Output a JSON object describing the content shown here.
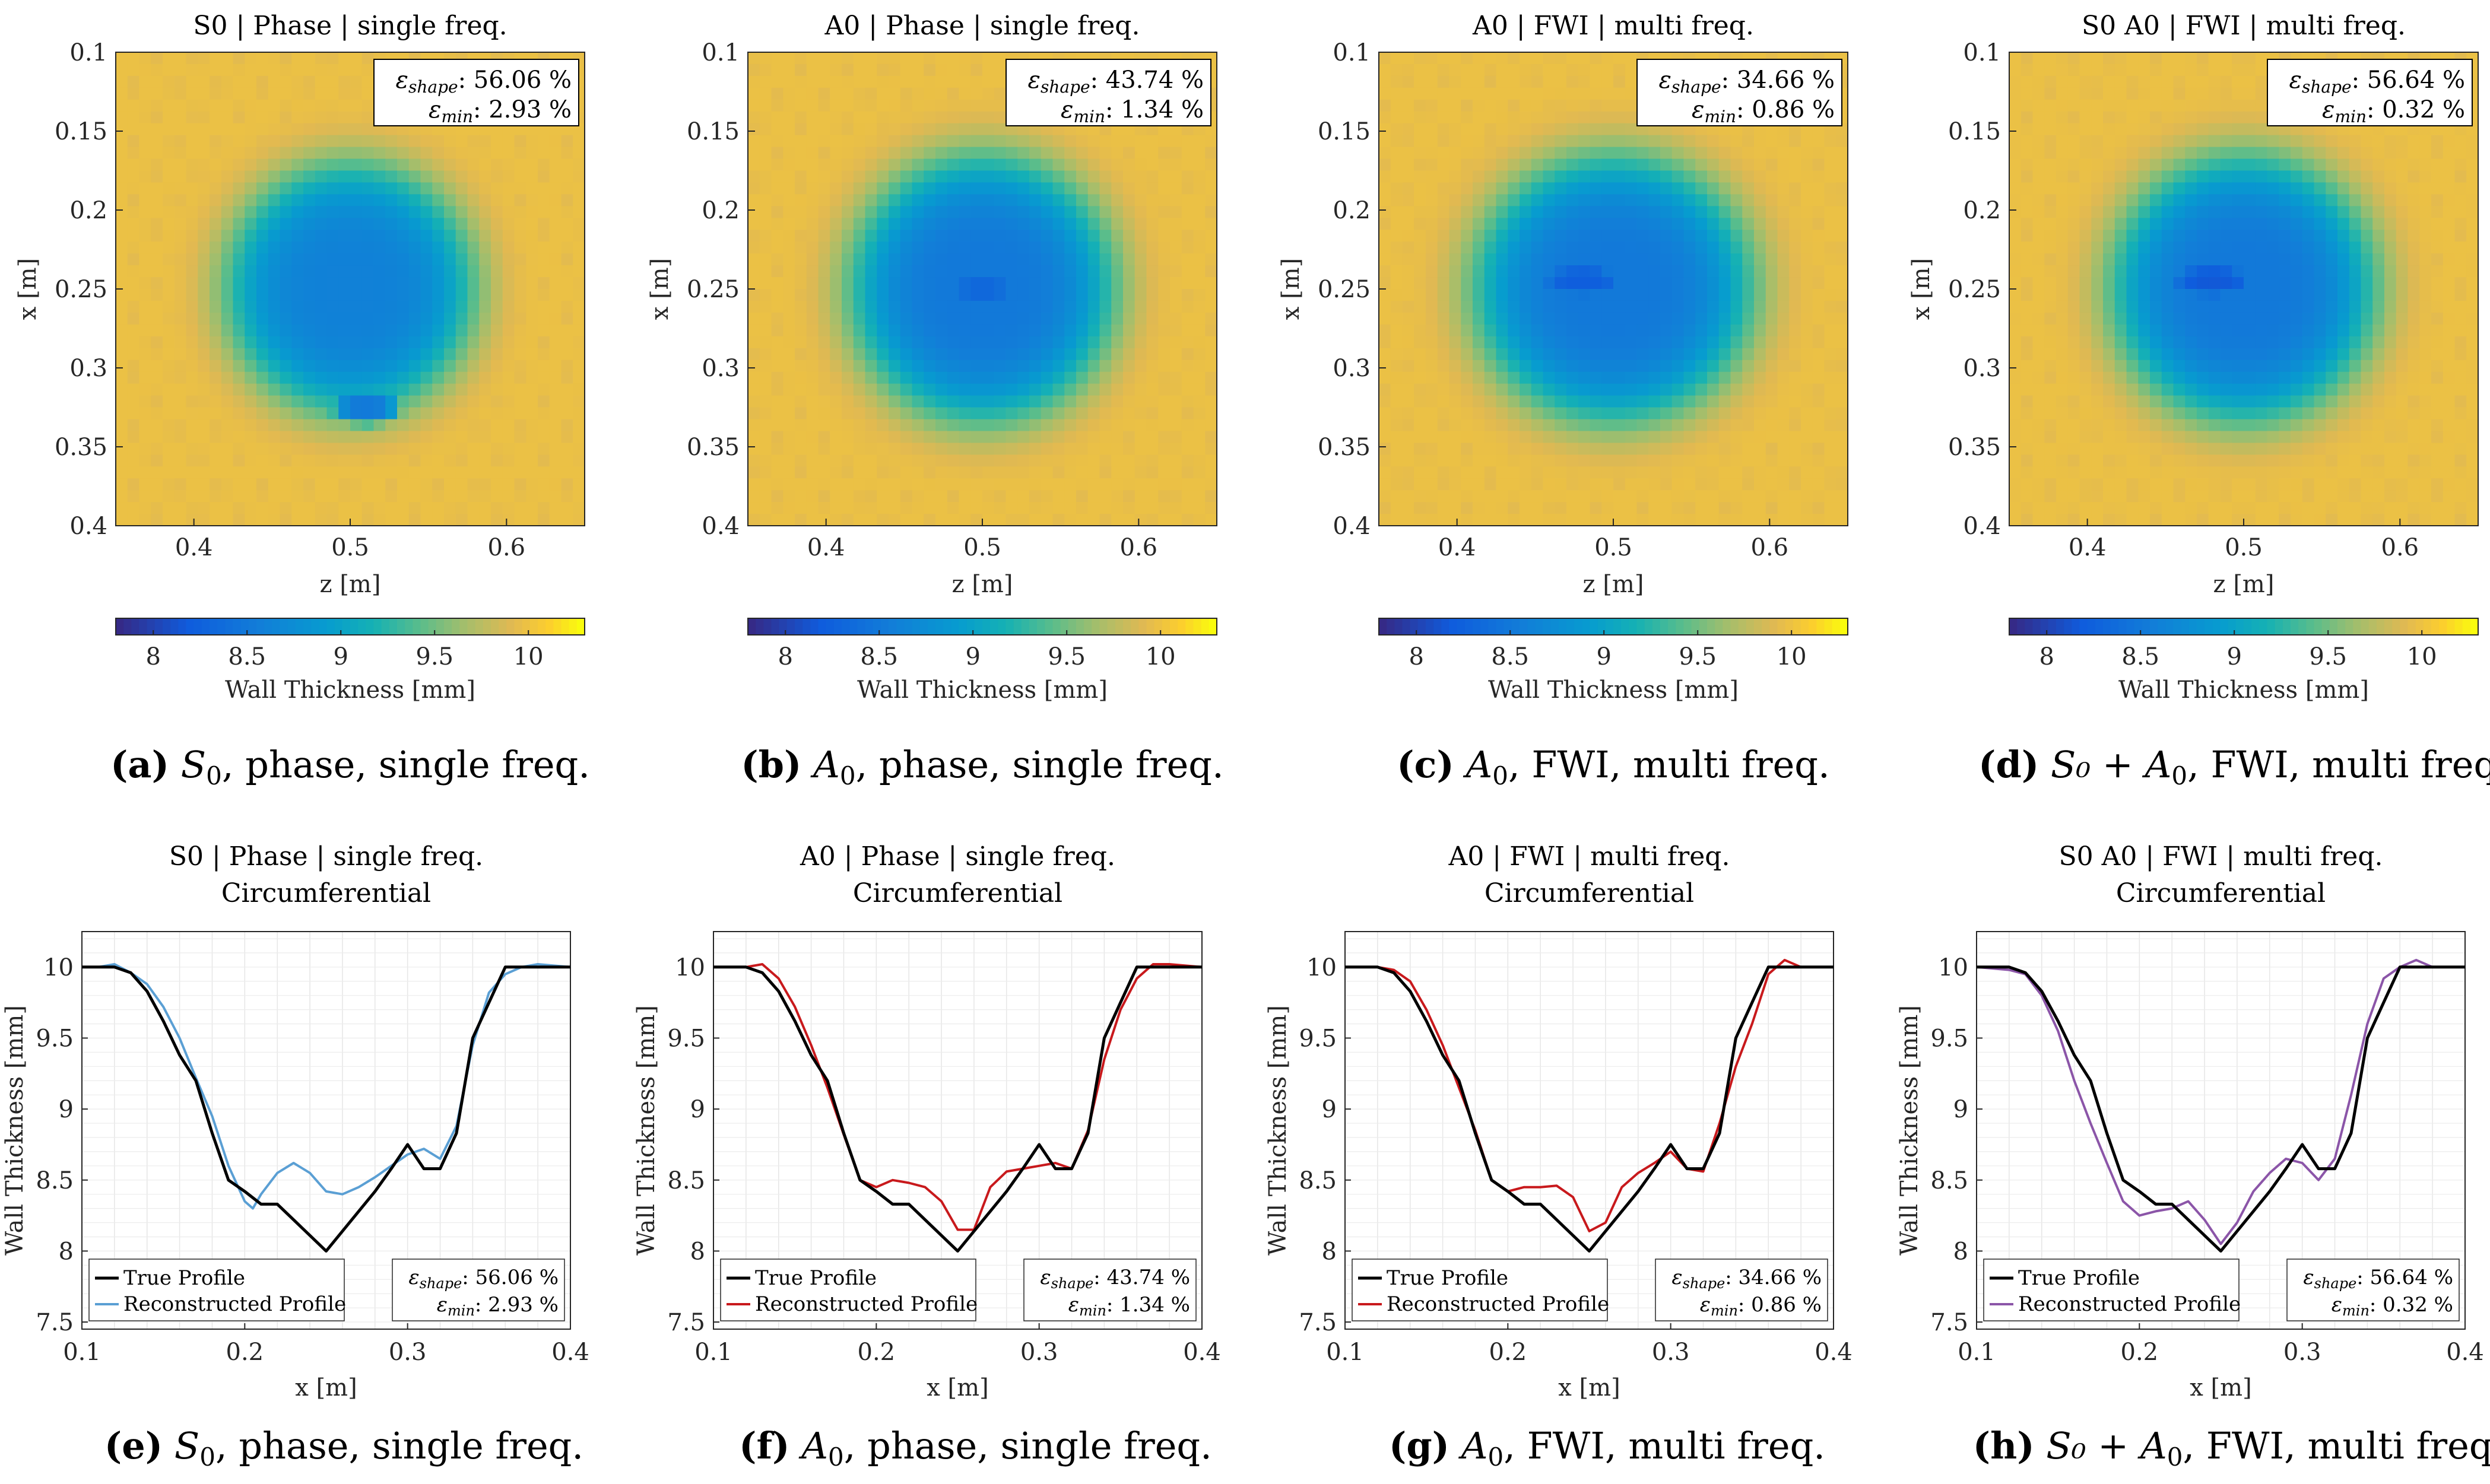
{
  "colorbar_label": "Wall Thickness [mm]",
  "colorbar_ticks": [
    "8",
    "8.5",
    "9",
    "9.5",
    "10"
  ],
  "heatmap_axes": {
    "xlabel": "z [m]",
    "ylabel": "x [m]",
    "xticks": [
      "0.4",
      "0.5",
      "0.6"
    ],
    "yticks": [
      "0.1",
      "0.15",
      "0.2",
      "0.25",
      "0.3",
      "0.35",
      "0.4"
    ]
  },
  "profile_axes": {
    "subtitle": "Circumferential",
    "xlabel": "x [m]",
    "ylabel": "Wall Thickness [mm]",
    "xticks": [
      "0.1",
      "0.2",
      "0.3",
      "0.4"
    ],
    "yticks": [
      "7.5",
      "8",
      "8.5",
      "9",
      "9.5",
      "10"
    ],
    "legend_true": "True Profile",
    "legend_recon": "Reconstructed Profile"
  },
  "panels_top": [
    {
      "title": "S0 | Phase | single freq.",
      "eshape": "56.06 %",
      "emin": "2.93 %",
      "cap_letter": "(a)",
      "cap_pre": "",
      "cap_main": "S",
      "cap_sub": "0",
      "cap_rest": ", phase, single freq."
    },
    {
      "title": "A0 | Phase | single freq.",
      "eshape": "43.74 %",
      "emin": "1.34 %",
      "cap_letter": "(b)",
      "cap_pre": "",
      "cap_main": "A",
      "cap_sub": "0",
      "cap_rest": ", phase, single freq."
    },
    {
      "title": "A0 | FWI | multi freq.",
      "eshape": "34.66 %",
      "emin": "0.86 %",
      "cap_letter": "(c)",
      "cap_pre": "",
      "cap_main": "A",
      "cap_sub": "0",
      "cap_rest": ", FWI, multi freq."
    },
    {
      "title": "S0 A0 | FWI | multi freq.",
      "eshape": "56.64 %",
      "emin": "0.32 %",
      "cap_letter": "(d)",
      "cap_pre": "S₀ + ",
      "cap_main": "A",
      "cap_sub": "0",
      "cap_rest": ", FWI, multi freq."
    }
  ],
  "panels_bottom": [
    {
      "title": "S0 | Phase | single freq.",
      "eshape": "56.06 %",
      "emin": "2.93 %",
      "color": "#5a9fd4",
      "cap_letter": "(e)",
      "cap_pre": "",
      "cap_main": "S",
      "cap_sub": "0",
      "cap_rest": ", phase, single freq."
    },
    {
      "title": "A0 | Phase | single freq.",
      "eshape": "43.74 %",
      "emin": "1.34 %",
      "color": "#c8191c",
      "cap_letter": "(f)",
      "cap_pre": "",
      "cap_main": "A",
      "cap_sub": "0",
      "cap_rest": ", phase, single freq."
    },
    {
      "title": "A0 | FWI | multi freq.",
      "eshape": "34.66 %",
      "emin": "0.86 %",
      "color": "#c8191c",
      "cap_letter": "(g)",
      "cap_pre": "",
      "cap_main": "A",
      "cap_sub": "0",
      "cap_rest": ", FWI, multi freq."
    },
    {
      "title": "S0 A0 | FWI | multi freq.",
      "eshape": "56.64 %",
      "emin": "0.32 %",
      "color": "#8b55a8",
      "cap_letter": "(h)",
      "cap_pre": "S₀ + ",
      "cap_main": "A",
      "cap_sub": "0",
      "cap_rest": ", FWI, multi freq."
    }
  ],
  "chart_data": [
    {
      "type": "heatmap",
      "title": "S0 | Phase | single freq.",
      "xlabel": "z [m]",
      "ylabel": "x [m]",
      "xlim": [
        0.35,
        0.65
      ],
      "ylim": [
        0.1,
        0.4
      ],
      "clim": [
        7.8,
        10.3
      ],
      "colormap": "parula",
      "background_value": 10.0,
      "blobs": [
        {
          "cx": 0.5,
          "cy": 0.25,
          "rx": 0.085,
          "ry": 0.085,
          "min": 8.6
        },
        {
          "cx": 0.51,
          "cy": 0.325,
          "rx": 0.025,
          "ry": 0.012,
          "min": 8.5
        }
      ],
      "eshape_percent": 56.06,
      "emin_percent": 2.93
    },
    {
      "type": "heatmap",
      "title": "A0 | Phase | single freq.",
      "xlabel": "z [m]",
      "ylabel": "x [m]",
      "xlim": [
        0.35,
        0.65
      ],
      "ylim": [
        0.1,
        0.4
      ],
      "clim": [
        7.8,
        10.3
      ],
      "colormap": "parula",
      "background_value": 10.0,
      "blobs": [
        {
          "cx": 0.5,
          "cy": 0.25,
          "rx": 0.09,
          "ry": 0.09,
          "min": 8.5
        },
        {
          "cx": 0.5,
          "cy": 0.25,
          "rx": 0.03,
          "ry": 0.012,
          "min": 8.3
        }
      ],
      "eshape_percent": 43.74,
      "emin_percent": 1.34
    },
    {
      "type": "heatmap",
      "title": "A0 | FWI | multi freq.",
      "xlabel": "z [m]",
      "ylabel": "x [m]",
      "xlim": [
        0.35,
        0.65
      ],
      "ylim": [
        0.1,
        0.4
      ],
      "clim": [
        7.8,
        10.3
      ],
      "colormap": "parula",
      "background_value": 10.0,
      "blobs": [
        {
          "cx": 0.5,
          "cy": 0.25,
          "rx": 0.095,
          "ry": 0.09,
          "min": 8.5
        },
        {
          "cx": 0.48,
          "cy": 0.245,
          "rx": 0.035,
          "ry": 0.014,
          "min": 8.2
        }
      ],
      "eshape_percent": 34.66,
      "emin_percent": 0.86
    },
    {
      "type": "heatmap",
      "title": "S0 A0 | FWI | multi freq.",
      "xlabel": "z [m]",
      "ylabel": "x [m]",
      "xlim": [
        0.35,
        0.65
      ],
      "ylim": [
        0.1,
        0.4
      ],
      "clim": [
        7.8,
        10.3
      ],
      "colormap": "parula",
      "background_value": 10.0,
      "blobs": [
        {
          "cx": 0.5,
          "cy": 0.25,
          "rx": 0.09,
          "ry": 0.09,
          "min": 8.5
        },
        {
          "cx": 0.48,
          "cy": 0.245,
          "rx": 0.035,
          "ry": 0.014,
          "min": 8.15
        }
      ],
      "eshape_percent": 56.64,
      "emin_percent": 0.32
    },
    {
      "type": "line",
      "title": "S0 | Phase | single freq.",
      "subtitle": "Circumferential",
      "xlabel": "x [m]",
      "ylabel": "Wall Thickness [mm]",
      "xlim": [
        0.1,
        0.4
      ],
      "ylim": [
        7.45,
        10.25
      ],
      "grid": true,
      "legend": "bottom-left",
      "series": [
        {
          "name": "True Profile",
          "color": "#000000",
          "x": [
            0.1,
            0.12,
            0.13,
            0.14,
            0.15,
            0.16,
            0.17,
            0.18,
            0.19,
            0.2,
            0.21,
            0.22,
            0.25,
            0.28,
            0.29,
            0.3,
            0.31,
            0.32,
            0.33,
            0.34,
            0.35,
            0.36,
            0.4
          ],
          "y": [
            10.0,
            10.0,
            9.96,
            9.83,
            9.62,
            9.38,
            9.2,
            8.83,
            8.5,
            8.42,
            8.33,
            8.33,
            8.0,
            8.42,
            8.58,
            8.75,
            8.58,
            8.58,
            8.83,
            9.5,
            9.75,
            10.0,
            10.0
          ]
        },
        {
          "name": "Reconstructed Profile",
          "color": "#5a9fd4",
          "x": [
            0.1,
            0.11,
            0.12,
            0.13,
            0.14,
            0.15,
            0.16,
            0.17,
            0.18,
            0.19,
            0.2,
            0.205,
            0.21,
            0.22,
            0.23,
            0.24,
            0.25,
            0.26,
            0.27,
            0.28,
            0.29,
            0.3,
            0.31,
            0.32,
            0.33,
            0.34,
            0.35,
            0.36,
            0.37,
            0.38,
            0.4
          ],
          "y": [
            10.0,
            10.0,
            10.02,
            9.96,
            9.88,
            9.72,
            9.5,
            9.22,
            8.95,
            8.6,
            8.35,
            8.3,
            8.4,
            8.55,
            8.62,
            8.55,
            8.42,
            8.4,
            8.45,
            8.52,
            8.6,
            8.68,
            8.72,
            8.65,
            8.88,
            9.45,
            9.82,
            9.95,
            10.0,
            10.02,
            10.0
          ]
        }
      ]
    },
    {
      "type": "line",
      "title": "A0 | Phase | single freq.",
      "subtitle": "Circumferential",
      "xlabel": "x [m]",
      "ylabel": "Wall Thickness [mm]",
      "xlim": [
        0.1,
        0.4
      ],
      "ylim": [
        7.45,
        10.25
      ],
      "grid": true,
      "legend": "bottom-left",
      "series": [
        {
          "name": "True Profile",
          "color": "#000000",
          "x": [
            0.1,
            0.12,
            0.13,
            0.14,
            0.15,
            0.16,
            0.17,
            0.18,
            0.19,
            0.2,
            0.21,
            0.22,
            0.25,
            0.28,
            0.29,
            0.3,
            0.31,
            0.32,
            0.33,
            0.34,
            0.35,
            0.36,
            0.4
          ],
          "y": [
            10.0,
            10.0,
            9.96,
            9.83,
            9.62,
            9.38,
            9.2,
            8.83,
            8.5,
            8.42,
            8.33,
            8.33,
            8.0,
            8.42,
            8.58,
            8.75,
            8.58,
            8.58,
            8.83,
            9.5,
            9.75,
            10.0,
            10.0
          ]
        },
        {
          "name": "Reconstructed Profile",
          "color": "#c8191c",
          "x": [
            0.1,
            0.12,
            0.13,
            0.14,
            0.15,
            0.16,
            0.17,
            0.18,
            0.19,
            0.2,
            0.21,
            0.22,
            0.23,
            0.24,
            0.25,
            0.26,
            0.27,
            0.28,
            0.29,
            0.3,
            0.31,
            0.32,
            0.33,
            0.34,
            0.35,
            0.36,
            0.37,
            0.38,
            0.4
          ],
          "y": [
            10.0,
            10.0,
            10.02,
            9.92,
            9.72,
            9.45,
            9.15,
            8.82,
            8.5,
            8.45,
            8.5,
            8.48,
            8.45,
            8.35,
            8.15,
            8.15,
            8.45,
            8.56,
            8.58,
            8.6,
            8.62,
            8.58,
            8.85,
            9.35,
            9.7,
            9.92,
            10.02,
            10.02,
            10.0
          ]
        }
      ]
    },
    {
      "type": "line",
      "title": "A0 | FWI | multi freq.",
      "subtitle": "Circumferential",
      "xlabel": "x [m]",
      "ylabel": "Wall Thickness [mm]",
      "xlim": [
        0.1,
        0.4
      ],
      "ylim": [
        7.45,
        10.25
      ],
      "grid": true,
      "legend": "bottom-left",
      "series": [
        {
          "name": "True Profile",
          "color": "#000000",
          "x": [
            0.1,
            0.12,
            0.13,
            0.14,
            0.15,
            0.16,
            0.17,
            0.18,
            0.19,
            0.2,
            0.21,
            0.22,
            0.25,
            0.28,
            0.29,
            0.3,
            0.31,
            0.32,
            0.33,
            0.34,
            0.35,
            0.36,
            0.4
          ],
          "y": [
            10.0,
            10.0,
            9.96,
            9.83,
            9.62,
            9.38,
            9.2,
            8.83,
            8.5,
            8.42,
            8.33,
            8.33,
            8.0,
            8.42,
            8.58,
            8.75,
            8.58,
            8.58,
            8.83,
            9.5,
            9.75,
            10.0,
            10.0
          ]
        },
        {
          "name": "Reconstructed Profile",
          "color": "#c8191c",
          "x": [
            0.1,
            0.12,
            0.13,
            0.14,
            0.15,
            0.16,
            0.17,
            0.18,
            0.19,
            0.2,
            0.21,
            0.22,
            0.23,
            0.24,
            0.25,
            0.26,
            0.27,
            0.28,
            0.29,
            0.3,
            0.31,
            0.32,
            0.33,
            0.34,
            0.35,
            0.36,
            0.37,
            0.38,
            0.4
          ],
          "y": [
            10.0,
            10.0,
            9.98,
            9.9,
            9.7,
            9.45,
            9.15,
            8.85,
            8.5,
            8.42,
            8.45,
            8.45,
            8.46,
            8.38,
            8.14,
            8.2,
            8.45,
            8.55,
            8.62,
            8.7,
            8.58,
            8.56,
            8.9,
            9.3,
            9.6,
            9.95,
            10.05,
            10.0,
            10.0
          ]
        }
      ]
    },
    {
      "type": "line",
      "title": "S0 A0 | FWI | multi freq.",
      "subtitle": "Circumferential",
      "xlabel": "x [m]",
      "ylabel": "Wall Thickness [mm]",
      "xlim": [
        0.1,
        0.4
      ],
      "ylim": [
        7.45,
        10.25
      ],
      "grid": true,
      "legend": "bottom-left",
      "series": [
        {
          "name": "True Profile",
          "color": "#000000",
          "x": [
            0.1,
            0.12,
            0.13,
            0.14,
            0.15,
            0.16,
            0.17,
            0.18,
            0.19,
            0.2,
            0.21,
            0.22,
            0.25,
            0.28,
            0.29,
            0.3,
            0.31,
            0.32,
            0.33,
            0.34,
            0.35,
            0.36,
            0.4
          ],
          "y": [
            10.0,
            10.0,
            9.96,
            9.83,
            9.62,
            9.38,
            9.2,
            8.83,
            8.5,
            8.42,
            8.33,
            8.33,
            8.0,
            8.42,
            8.58,
            8.75,
            8.58,
            8.58,
            8.83,
            9.5,
            9.75,
            10.0,
            10.0
          ]
        },
        {
          "name": "Reconstructed Profile",
          "color": "#8b55a8",
          "x": [
            0.1,
            0.12,
            0.13,
            0.14,
            0.15,
            0.16,
            0.17,
            0.18,
            0.19,
            0.2,
            0.21,
            0.22,
            0.23,
            0.24,
            0.25,
            0.26,
            0.27,
            0.28,
            0.29,
            0.3,
            0.31,
            0.32,
            0.33,
            0.34,
            0.35,
            0.36,
            0.37,
            0.38,
            0.4
          ],
          "y": [
            10.0,
            9.98,
            9.95,
            9.8,
            9.55,
            9.2,
            8.9,
            8.62,
            8.35,
            8.25,
            8.28,
            8.3,
            8.35,
            8.22,
            8.05,
            8.2,
            8.42,
            8.55,
            8.65,
            8.62,
            8.5,
            8.65,
            9.1,
            9.6,
            9.92,
            10.0,
            10.05,
            10.0,
            10.0
          ]
        }
      ]
    }
  ]
}
